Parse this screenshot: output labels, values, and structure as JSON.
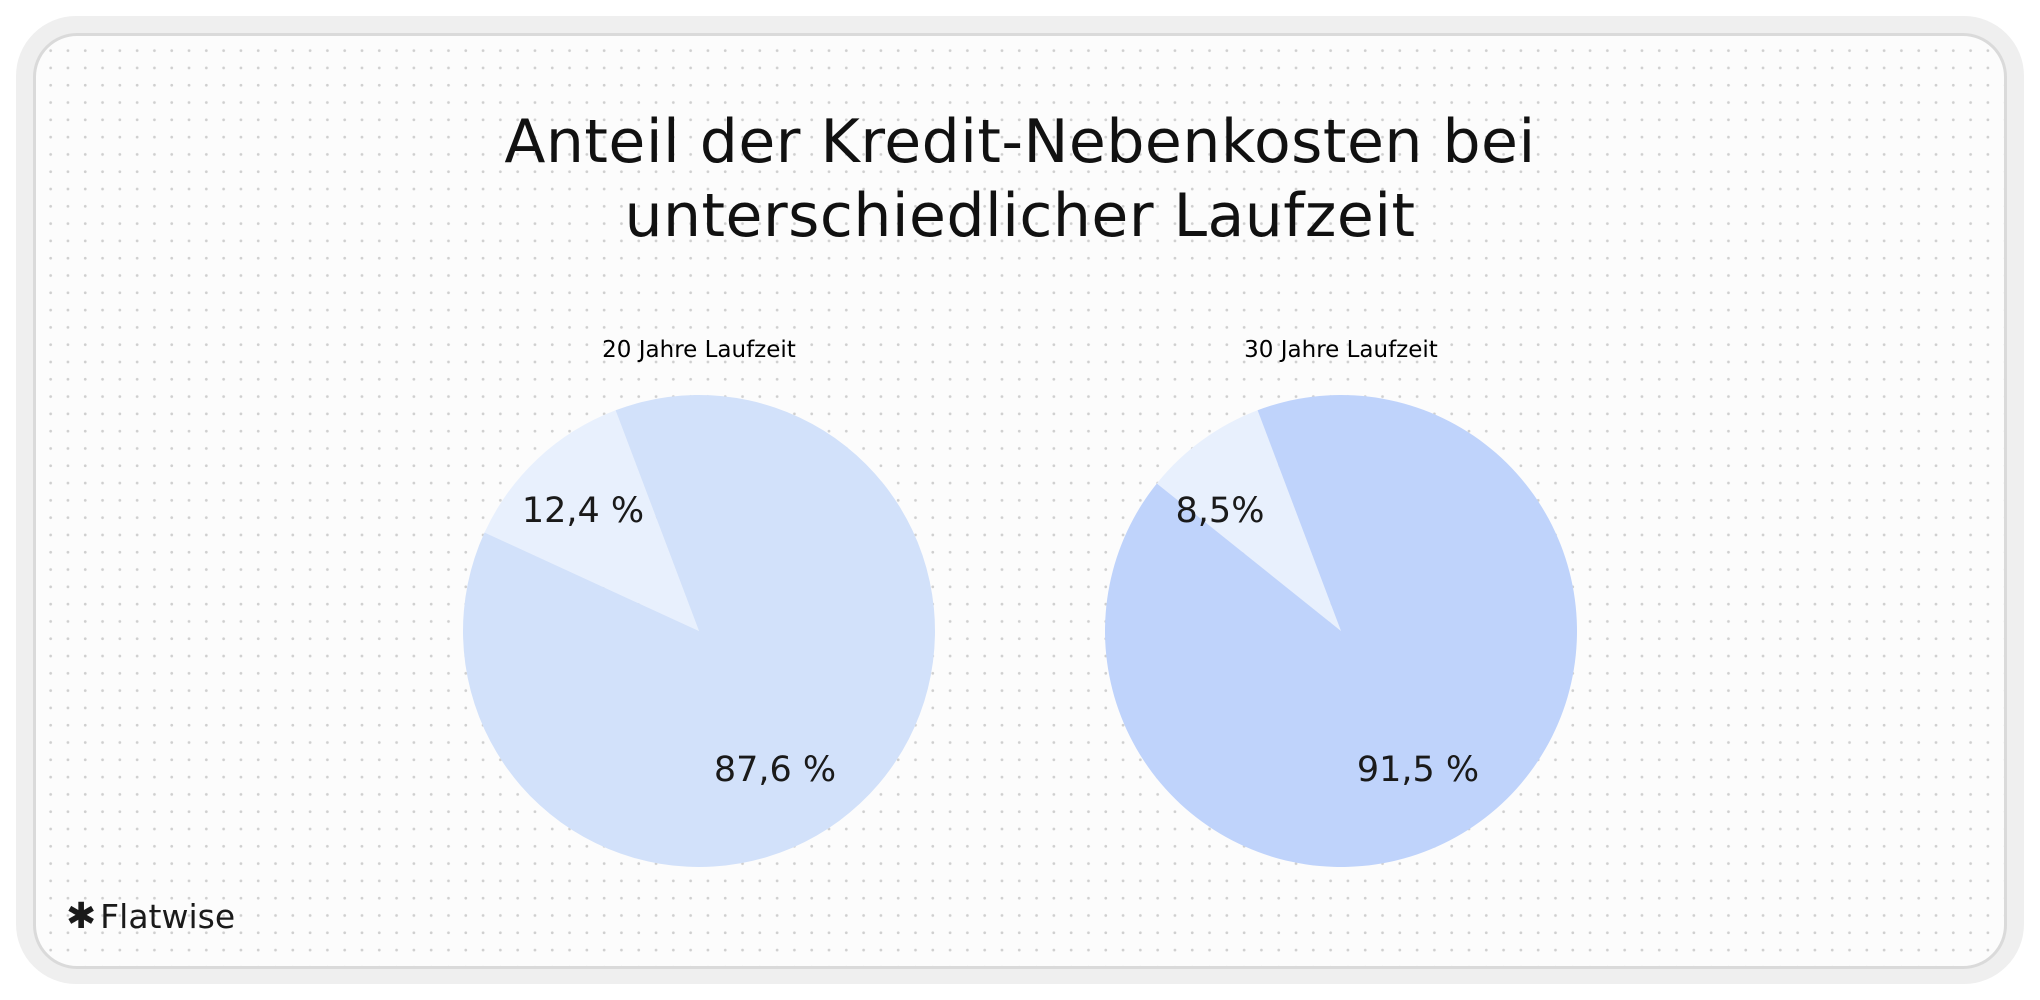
{
  "title": "Anteil der Kredit-Nebenkosten bei unterschiedlicher Laufzeit",
  "title_lines": [
    "Anteil der Kredit-Nebenkosten bei",
    "unterschiedlicher Laufzeit"
  ],
  "logo": {
    "text": "Flatwise",
    "icon": "asterisk-icon"
  },
  "chart_data": [
    {
      "type": "pie",
      "title": "20 Jahre Laufzeit",
      "values": [
        12.4,
        87.6
      ],
      "labels": [
        "12,4 %",
        "87,6 %"
      ],
      "colors": [
        "#e8f0fd",
        "#d2e1fa"
      ]
    },
    {
      "type": "pie",
      "title": "30 Jahre Laufzeit",
      "values": [
        8.5,
        91.5
      ],
      "labels": [
        "8,5%",
        "91,5 %"
      ],
      "colors": [
        "#e8f0fd",
        "#bfd3fb"
      ]
    }
  ]
}
